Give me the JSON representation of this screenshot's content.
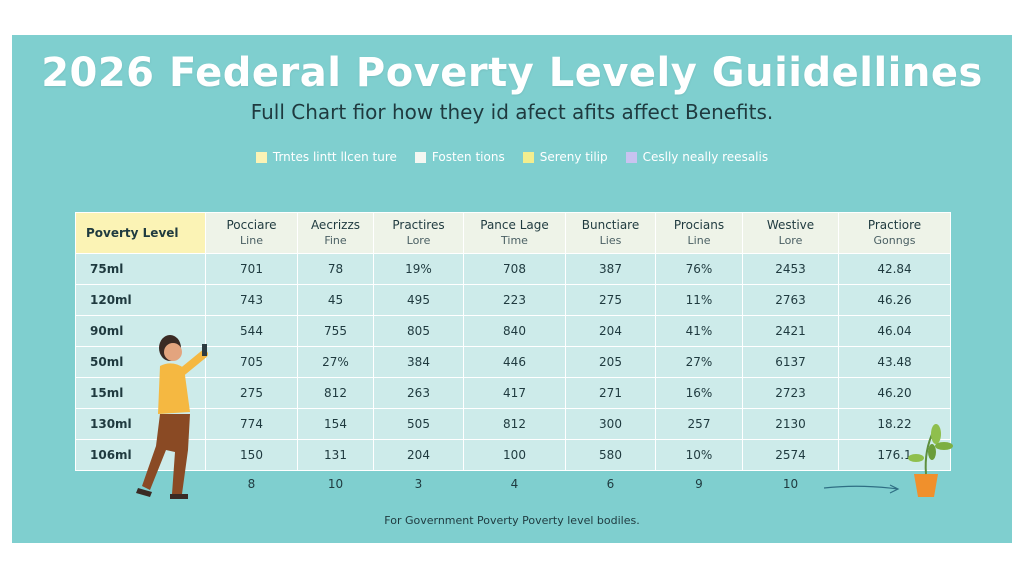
{
  "title": "2026 Federal Poverty Levely Guiidellines",
  "subtitle": "Full Chart fior how they id afect afits affect Benefits.",
  "legend": [
    {
      "label": "Trntes lintt llcen ture",
      "color": "#fbf3b5"
    },
    {
      "label": "Fosten tions",
      "color": "#f4f7f2"
    },
    {
      "label": "Sereny tilip",
      "color": "#f3ee8e"
    },
    {
      "label": "Ceslly neally reesalis",
      "color": "#c9c3f0"
    }
  ],
  "table": {
    "header": [
      [
        "Poverty Level"
      ],
      [
        "Pocciare",
        "Line"
      ],
      [
        "Aecrizzs",
        "Fine"
      ],
      [
        "Practires",
        "Lore"
      ],
      [
        "Pance Lage",
        "Time"
      ],
      [
        "Bunctiare",
        "Lies"
      ],
      [
        "Procians",
        "Line"
      ],
      [
        "Westive",
        "Lore"
      ],
      [
        "Practiore",
        "Gonngs"
      ]
    ],
    "rows": [
      [
        "75ml",
        "701",
        "78",
        "19%",
        "708",
        "387",
        "76%",
        "2453",
        "42.84"
      ],
      [
        "120ml",
        "743",
        "45",
        "495",
        "223",
        "275",
        "11%",
        "2763",
        "46.26"
      ],
      [
        "90ml",
        "544",
        "755",
        "805",
        "840",
        "204",
        "41%",
        "2421",
        "46.04"
      ],
      [
        "50ml",
        "705",
        "27%",
        "384",
        "446",
        "205",
        "27%",
        "6137",
        "43.48"
      ],
      [
        "15ml",
        "275",
        "812",
        "263",
        "417",
        "271",
        "16%",
        "2723",
        "46.20"
      ],
      [
        "130ml",
        "774",
        "154",
        "505",
        "812",
        "300",
        "257",
        "2130",
        "18.22"
      ],
      [
        "106ml",
        "150",
        "131",
        "204",
        "100",
        "580",
        "10%",
        "2574",
        "176.1"
      ]
    ],
    "footer": [
      "8",
      "10",
      "3",
      "4",
      "6",
      "9",
      "10"
    ]
  },
  "note": "For Government Poverty Poverty level bodiles."
}
